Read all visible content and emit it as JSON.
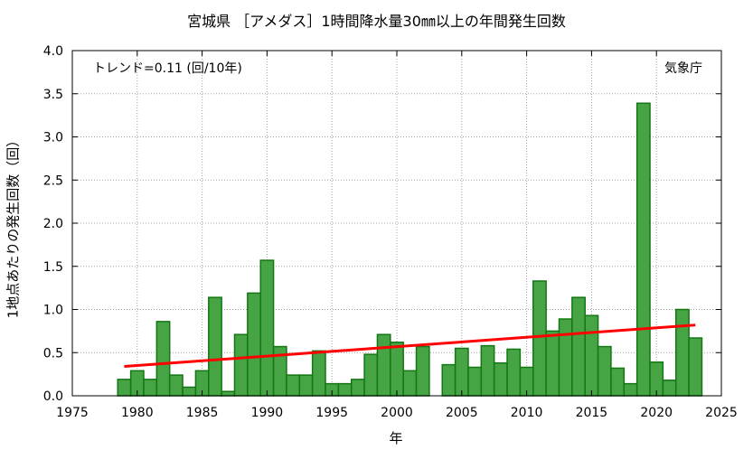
{
  "chart_data": {
    "type": "bar",
    "title": "宮城県 ［アメダス］1時間降水量30㎜以上の年間発生回数",
    "xlabel": "年",
    "ylabel": "1地点あたりの発生回数（回）",
    "xlim": [
      1975,
      2025
    ],
    "ylim": [
      0,
      4.0
    ],
    "xticks": [
      1975,
      1980,
      1985,
      1990,
      1995,
      2000,
      2005,
      2010,
      2015,
      2020,
      2025
    ],
    "yticks": [
      0.0,
      0.5,
      1.0,
      1.5,
      2.0,
      2.5,
      3.0,
      3.5,
      4.0
    ],
    "grid": true,
    "years": [
      1979,
      1980,
      1981,
      1982,
      1983,
      1984,
      1985,
      1986,
      1987,
      1988,
      1989,
      1990,
      1991,
      1992,
      1993,
      1994,
      1995,
      1996,
      1997,
      1998,
      1999,
      2000,
      2001,
      2002,
      2003,
      2004,
      2005,
      2006,
      2007,
      2008,
      2009,
      2010,
      2011,
      2012,
      2013,
      2014,
      2015,
      2016,
      2017,
      2018,
      2019,
      2020,
      2021,
      2022,
      2023
    ],
    "values": [
      0.19,
      0.29,
      0.19,
      0.86,
      0.24,
      0.1,
      0.29,
      1.14,
      0.05,
      0.71,
      1.19,
      1.57,
      0.57,
      0.24,
      0.24,
      0.52,
      0.14,
      0.14,
      0.19,
      0.48,
      0.71,
      0.62,
      0.29,
      0.57,
      0.0,
      0.36,
      0.55,
      0.33,
      0.58,
      0.38,
      0.54,
      0.33,
      1.33,
      0.75,
      0.89,
      1.14,
      0.93,
      0.57,
      0.32,
      0.14,
      3.39,
      0.39,
      0.18,
      1.0,
      0.67
    ],
    "trend": {
      "start": [
        1979,
        0.34
      ],
      "end": [
        2023,
        0.82
      ]
    },
    "trend_label": "トレンド=0.11 (回/10年)",
    "source_label": "気象庁",
    "colors": {
      "bar_fill": "#46a445",
      "bar_stroke": "#137713",
      "trend": "#ff0000",
      "grid": "#a0a0a0"
    }
  }
}
